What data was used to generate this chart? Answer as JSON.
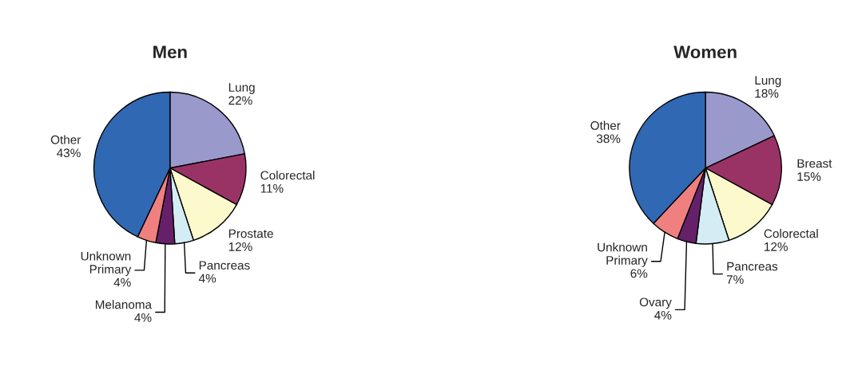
{
  "chart_data": [
    {
      "type": "pie",
      "title": "Men",
      "categories": [
        "Lung",
        "Colorectal",
        "Prostate",
        "Pancreas",
        "Melanoma",
        "Unknown Primary",
        "Other"
      ],
      "values": [
        22,
        11,
        12,
        4,
        4,
        4,
        43
      ],
      "value_labels": [
        "22%",
        "11%",
        "12%",
        "4%",
        "4%",
        "4%",
        "43%"
      ],
      "colors": [
        "#9999cc",
        "#993366",
        "#fcf9cc",
        "#d4ecf4",
        "#66206a",
        "#f08080",
        "#3068b4"
      ]
    },
    {
      "type": "pie",
      "title": "Women",
      "categories": [
        "Lung",
        "Breast",
        "Colorectal",
        "Pancreas",
        "Ovary",
        "Unknown Primary",
        "Other"
      ],
      "values": [
        18,
        15,
        12,
        7,
        4,
        6,
        38
      ],
      "value_labels": [
        "18%",
        "15%",
        "12%",
        "7%",
        "4%",
        "6%",
        "38%"
      ],
      "colors": [
        "#9999cc",
        "#993366",
        "#fcf9cc",
        "#d4ecf4",
        "#66206a",
        "#f08080",
        "#3068b4"
      ]
    }
  ]
}
